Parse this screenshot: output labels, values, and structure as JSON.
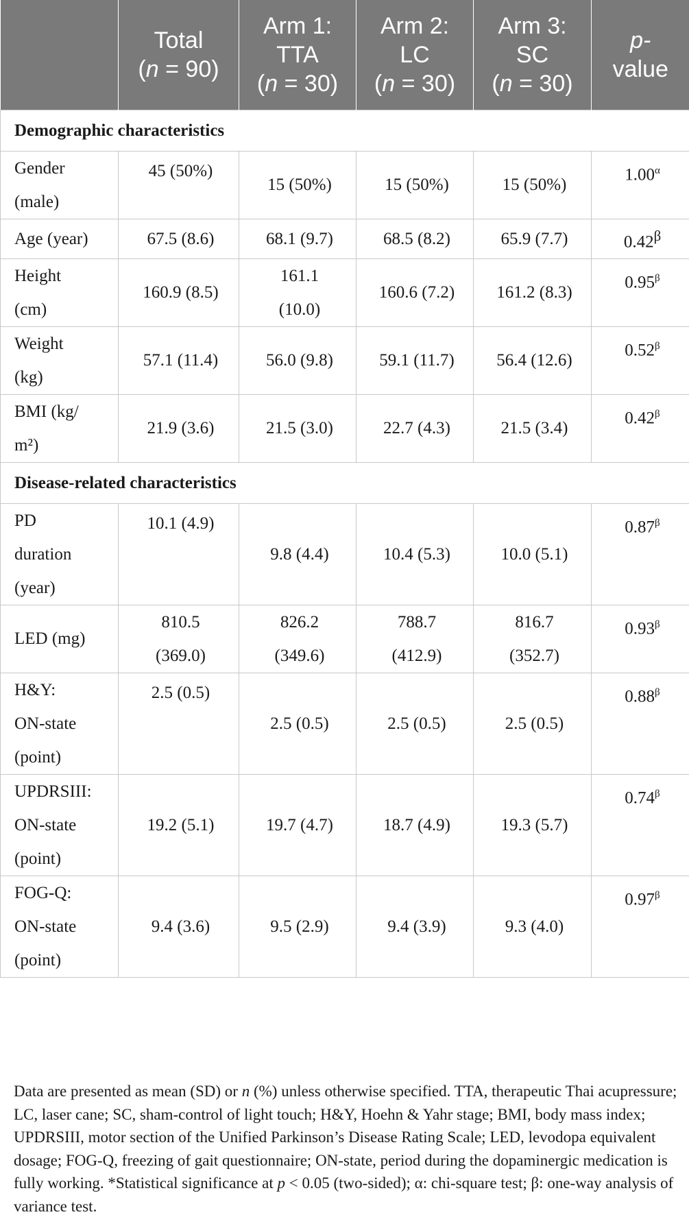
{
  "header": {
    "cols": [
      {
        "lines": [
          ""
        ]
      },
      {
        "lines": [
          "Total",
          "(n = 90)"
        ]
      },
      {
        "lines": [
          "Arm 1:",
          "TTA",
          "(n = 30)"
        ]
      },
      {
        "lines": [
          "Arm 2:",
          "LC",
          "(n = 30)"
        ]
      },
      {
        "lines": [
          "Arm 3:",
          "SC",
          "(n = 30)"
        ]
      },
      {
        "lines": [
          "p-",
          "value"
        ]
      }
    ]
  },
  "sections": [
    {
      "title": "Demographic characteristics",
      "rows": [
        {
          "label": [
            "Gender",
            "(male)"
          ],
          "total": [
            "45 (50%)"
          ],
          "arm1": [
            "15 (50%)"
          ],
          "arm2": [
            "15 (50%)"
          ],
          "arm3": [
            "15 (50%)"
          ],
          "p": "1.00",
          "sup": "α",
          "total_top": true,
          "height": 98
        },
        {
          "label": [
            "Age (year)"
          ],
          "total": [
            "67.5 (8.6)"
          ],
          "arm1": [
            "68.1 (9.7)"
          ],
          "arm2": [
            "68.5 (8.2)"
          ],
          "arm3": [
            "65.9 (7.7)"
          ],
          "p": "0.42",
          "sup": "β",
          "height": 54,
          "pmid": true
        },
        {
          "label": [
            "Height",
            "(cm)"
          ],
          "total": [
            "160.9 (8.5)"
          ],
          "arm1": [
            "161.1",
            "(10.0)"
          ],
          "arm2": [
            "160.6 (7.2)"
          ],
          "arm3": [
            "161.2 (8.3)"
          ],
          "p": "0.95",
          "sup": "β",
          "height": 98
        },
        {
          "label": [
            "Weight",
            "(kg)"
          ],
          "total": [
            "57.1 (11.4)"
          ],
          "arm1": [
            "56.0 (9.8)"
          ],
          "arm2": [
            "59.1 (11.7)"
          ],
          "arm3": [
            "56.4 (12.6)"
          ],
          "p": "0.52",
          "sup": "β",
          "height": 98
        },
        {
          "label": [
            "BMI (kg/",
            "m²)"
          ],
          "total": [
            "21.9 (3.6)"
          ],
          "arm1": [
            "21.5 (3.0)"
          ],
          "arm2": [
            "22.7 (4.3)"
          ],
          "arm3": [
            "21.5 (3.4)"
          ],
          "p": "0.42",
          "sup": "β",
          "height": 98
        }
      ]
    },
    {
      "title": "Disease-related characteristics",
      "rows": [
        {
          "label": [
            "PD",
            "duration",
            "(year)"
          ],
          "total": [
            "10.1 (4.9)"
          ],
          "arm1": [
            "9.8 (4.4)"
          ],
          "arm2": [
            "10.4 (5.3)"
          ],
          "arm3": [
            "10.0 (5.1)"
          ],
          "p": "0.87",
          "sup": "β",
          "total_top": true,
          "height": 141
        },
        {
          "label": [
            "LED (mg)"
          ],
          "total": [
            "810.5",
            "(369.0)"
          ],
          "arm1": [
            "826.2",
            "(349.6)"
          ],
          "arm2": [
            "788.7",
            "(412.9)"
          ],
          "arm3": [
            "816.7",
            "(352.7)"
          ],
          "p": "0.93",
          "sup": "β",
          "height": 98
        },
        {
          "label": [
            "H&Y:",
            "ON-state",
            "(point)"
          ],
          "total": [
            "2.5 (0.5)"
          ],
          "arm1": [
            "2.5 (0.5)"
          ],
          "arm2": [
            "2.5 (0.5)"
          ],
          "arm3": [
            "2.5 (0.5)"
          ],
          "p": "0.88",
          "sup": "β",
          "total_top": true,
          "height": 141
        },
        {
          "label": [
            "UPDRSIII:",
            "ON-state",
            "(point)"
          ],
          "total": [
            "19.2 (5.1)"
          ],
          "arm1": [
            "19.7 (4.7)"
          ],
          "arm2": [
            "18.7 (4.9)"
          ],
          "arm3": [
            "19.3 (5.7)"
          ],
          "p": "0.74",
          "sup": "β",
          "height": 141
        },
        {
          "label": [
            "FOG-Q:",
            "ON-state",
            "(point)"
          ],
          "total": [
            "9.4 (3.6)"
          ],
          "arm1": [
            "9.5 (2.9)"
          ],
          "arm2": [
            "9.4 (3.9)"
          ],
          "arm3": [
            "9.3 (4.0)"
          ],
          "p": "0.97",
          "sup": "β",
          "height": 141
        }
      ]
    }
  ],
  "footnote": {
    "part1": "Data are presented as mean (SD) or ",
    "part2": "n",
    "part3": " (%) unless otherwise specified. TTA, therapeutic Thai acupressure; LC, laser cane; SC, sham-control of light touch; H&Y, Hoehn & Yahr stage; BMI, body mass index; UPDRSIII, motor section of the Unified Parkinson’s Disease Rating Scale; LED, levodopa equivalent dosage; FOG-Q, freezing of gait questionnaire; ON-state, period during the dopaminergic medication is fully working. *Statistical significance at ",
    "part4": "p",
    "part5": " < 0.05 (two-sided); α: chi-square test; β: one-way analysis of variance test."
  }
}
